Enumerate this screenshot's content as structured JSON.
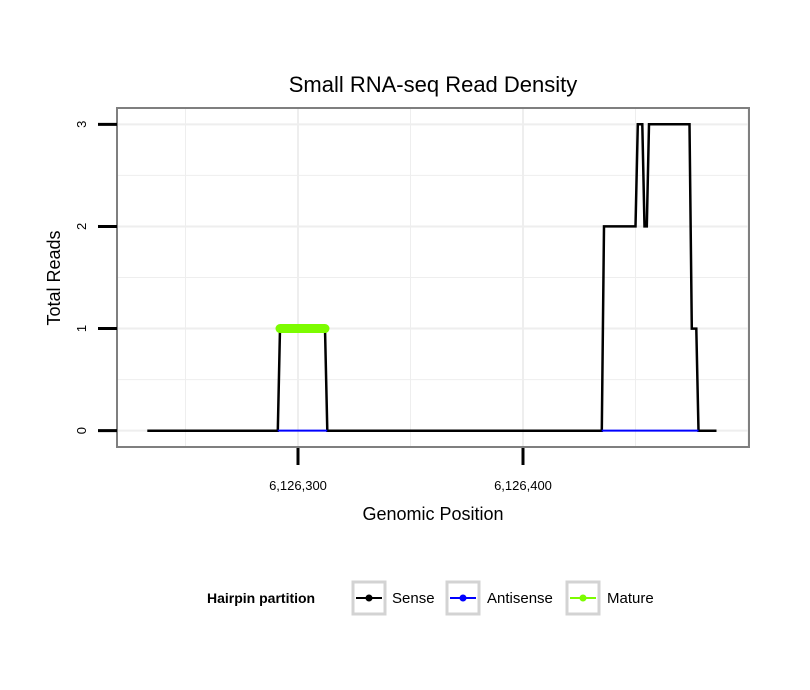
{
  "chart_data": {
    "type": "line",
    "title": "Small RNA-seq Read Density",
    "xlabel": "Genomic Position",
    "ylabel": "Total Reads",
    "xlim": [
      6126220,
      6126500
    ],
    "ylim": [
      -0.15,
      3.15
    ],
    "x_ticks": [
      {
        "value": 6126300,
        "label": "6,126,300"
      },
      {
        "value": 6126400,
        "label": "6,126,400"
      }
    ],
    "y_ticks": [
      {
        "value": 0,
        "label": "0"
      },
      {
        "value": 1,
        "label": "1"
      },
      {
        "value": 2,
        "label": "2"
      },
      {
        "value": 3,
        "label": "3"
      }
    ],
    "legend": {
      "title": "Hairpin partition",
      "position": "bottom",
      "entries": [
        {
          "label": "Sense",
          "color": "#000000"
        },
        {
          "label": "Antisense",
          "color": "#0000ff"
        },
        {
          "label": "Mature",
          "color": "#7cfc00"
        }
      ]
    },
    "series": [
      {
        "name": "Sense",
        "color": "#000000",
        "x": [
          6126233,
          6126291,
          6126292,
          6126312,
          6126313,
          6126435,
          6126436,
          6126450,
          6126451,
          6126453,
          6126454,
          6126455,
          6126456,
          6126474,
          6126475,
          6126477,
          6126478,
          6126486
        ],
        "y": [
          0,
          0,
          1,
          1,
          0,
          0,
          2,
          2,
          3,
          3,
          2,
          2,
          3,
          3,
          1,
          1,
          0,
          0
        ]
      },
      {
        "name": "Antisense",
        "color": "#0000ff",
        "x": [
          6126291,
          6126313,
          6126435,
          6126478
        ],
        "y": [
          0,
          0,
          0,
          0
        ],
        "segments": [
          [
            0,
            1
          ],
          [
            2,
            3
          ]
        ]
      },
      {
        "name": "Mature",
        "color": "#7cfc00",
        "x": [
          6126292,
          6126312
        ],
        "y": [
          1,
          1
        ]
      }
    ]
  }
}
